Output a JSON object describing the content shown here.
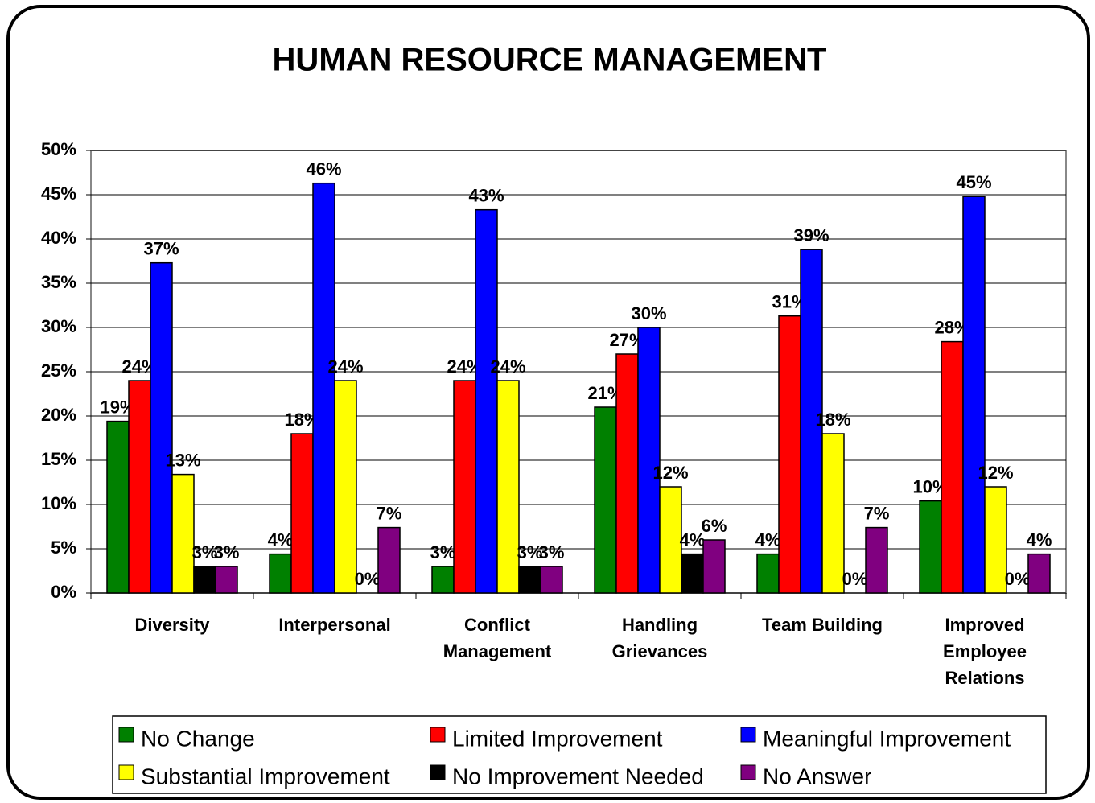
{
  "chart_data": {
    "type": "bar",
    "title": "HUMAN RESOURCE MANAGEMENT",
    "categories": [
      "Diversity",
      "Interpersonal",
      "Conflict Management",
      "Handling Grievances",
      "Team Building",
      "Improved Employee Relations"
    ],
    "series": [
      {
        "name": "No Change",
        "color": "#008000",
        "values": [
          19.4,
          4.4,
          3,
          21,
          4.4,
          10.4
        ],
        "value_labels": [
          "19%",
          "4%",
          "3%",
          "21%",
          "4%",
          "10%"
        ]
      },
      {
        "name": "Limited Improvement",
        "color": "#ff0000",
        "values": [
          24,
          18,
          24,
          27,
          31.3,
          28.4
        ],
        "value_labels": [
          "24%",
          "18%",
          "24%",
          "27%",
          "31%",
          "28%"
        ]
      },
      {
        "name": "Meaningful Improvement",
        "color": "#0000ff",
        "values": [
          37.3,
          46.3,
          43.3,
          30,
          38.8,
          44.8
        ],
        "value_labels": [
          "37%",
          "46%",
          "43%",
          "30%",
          "39%",
          "45%"
        ]
      },
      {
        "name": "Substantial Improvement",
        "color": "#ffff00",
        "values": [
          13.4,
          24,
          24,
          12,
          18,
          12
        ],
        "value_labels": [
          "13%",
          "24%",
          "24%",
          "12%",
          "18%",
          "12%"
        ]
      },
      {
        "name": "No Improvement Needed",
        "color": "#000000",
        "values": [
          3,
          0,
          3,
          4.4,
          0,
          0
        ],
        "value_labels": [
          "3%",
          "0%",
          "3%",
          "4%",
          "0%",
          "0%"
        ]
      },
      {
        "name": "No Answer",
        "color": "#800080",
        "values": [
          3,
          7.4,
          3,
          6,
          7.4,
          4.4
        ],
        "value_labels": [
          "3%",
          "7%",
          "3%",
          "6%",
          "7%",
          "4%"
        ]
      }
    ],
    "ylim": [
      0,
      50
    ],
    "yticks": [
      {
        "value": 0,
        "label": "0%"
      },
      {
        "value": 5,
        "label": "5%"
      },
      {
        "value": 10,
        "label": "10%"
      },
      {
        "value": 15,
        "label": "15%"
      },
      {
        "value": 20,
        "label": "20%"
      },
      {
        "value": 25,
        "label": "25%"
      },
      {
        "value": 30,
        "label": "30%"
      },
      {
        "value": 35,
        "label": "35%"
      },
      {
        "value": 40,
        "label": "40%"
      },
      {
        "value": 45,
        "label": "45%"
      },
      {
        "value": 50,
        "label": "50%"
      }
    ],
    "grid": true
  }
}
